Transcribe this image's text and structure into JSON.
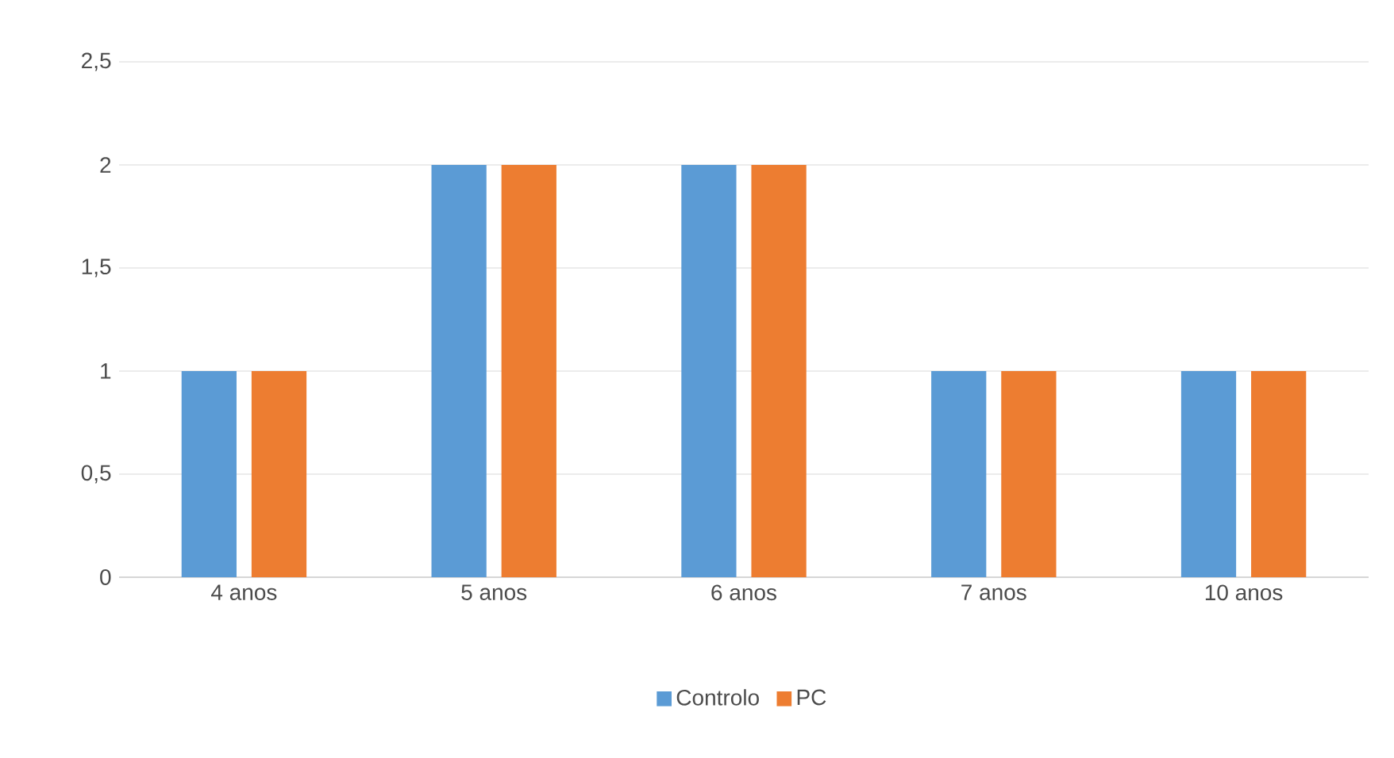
{
  "chart_data": {
    "type": "bar",
    "categories": [
      "4 anos",
      "5 anos",
      "6 anos",
      "7 anos",
      "10 anos"
    ],
    "series": [
      {
        "name": "Controlo",
        "color": "#5b9bd5",
        "values": [
          1,
          2,
          2,
          1,
          1
        ]
      },
      {
        "name": "PC",
        "color": "#ed7d31",
        "values": [
          1,
          2,
          2,
          1,
          1
        ]
      }
    ],
    "ylim": [
      0,
      2.5
    ],
    "yticks": [
      0,
      {
        "value": 0.5,
        "label": "0,5"
      },
      1,
      {
        "value": 1.5,
        "label": "1,5"
      },
      2,
      {
        "value": 2.5,
        "label": "2,5"
      }
    ],
    "grid": "y",
    "legend": "bottom"
  }
}
